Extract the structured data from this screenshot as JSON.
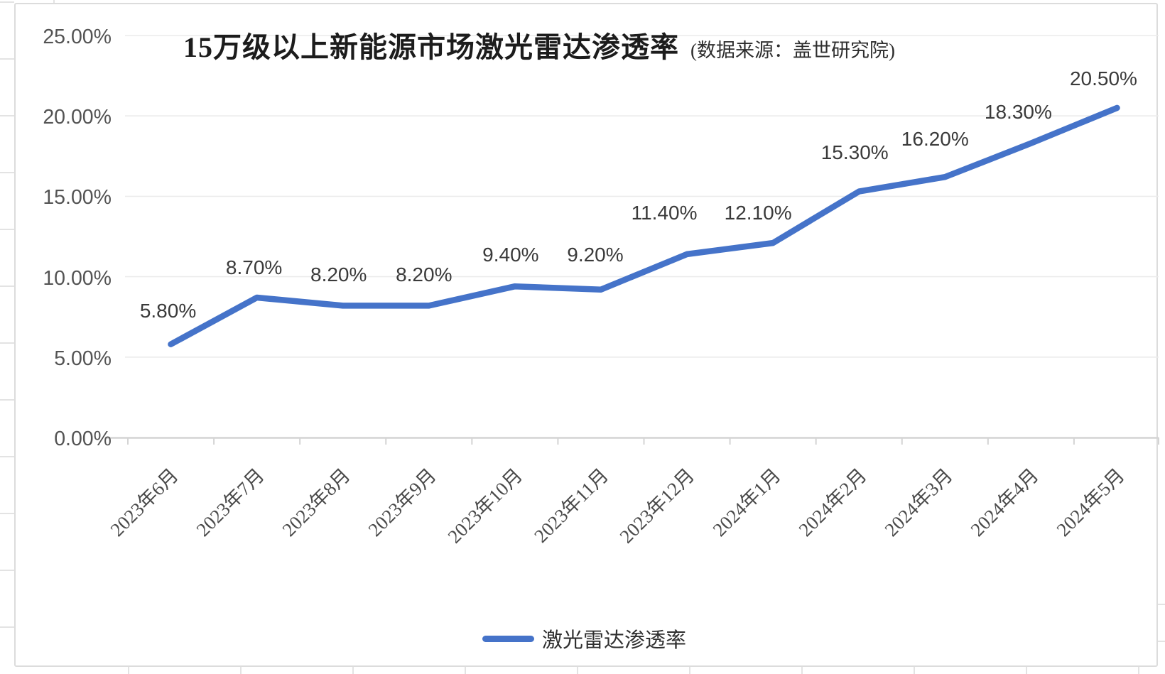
{
  "chart_data": {
    "type": "line",
    "title": "15万级以上新能源市场激光雷达渗透率",
    "subtitle": "(数据来源：盖世研究院)",
    "categories": [
      "2023年6月",
      "2023年7月",
      "2023年8月",
      "2023年9月",
      "2023年10月",
      "2023年11月",
      "2023年12月",
      "2024年1月",
      "2024年2月",
      "2024年3月",
      "2024年4月",
      "2024年5月"
    ],
    "series": [
      {
        "name": "激光雷达渗透率",
        "values": [
          5.8,
          8.7,
          8.2,
          8.2,
          9.4,
          9.2,
          11.4,
          12.1,
          15.3,
          16.2,
          18.3,
          20.5
        ]
      }
    ],
    "data_labels": [
      "5.80%",
      "8.70%",
      "8.20%",
      "8.20%",
      "9.40%",
      "9.20%",
      "11.40%",
      "12.10%",
      "15.30%",
      "16.20%",
      "18.30%",
      "20.50%"
    ],
    "y_tick_labels": [
      "25.00%",
      "20.00%",
      "15.00%",
      "10.00%",
      "5.00%",
      "0.00%"
    ],
    "y_tick_values": [
      25,
      20,
      15,
      10,
      5,
      0
    ],
    "ylim": [
      0,
      25
    ],
    "grid": true,
    "legend_position": "bottom",
    "line_color": "#4573C9",
    "gridline_color": "#ebebeb",
    "axis_color": "#d4d4d4"
  }
}
